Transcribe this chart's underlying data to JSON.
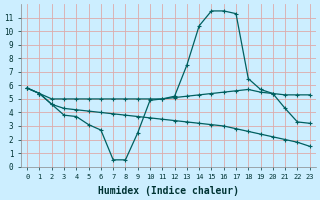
{
  "xlabel": "Humidex (Indice chaleur)",
  "bg_color": "#cceeff",
  "grid_color": "#ddaaaa",
  "line_color": "#006060",
  "xlim": [
    -0.5,
    23.5
  ],
  "ylim": [
    0,
    12
  ],
  "xticks": [
    0,
    1,
    2,
    3,
    4,
    5,
    6,
    7,
    8,
    9,
    10,
    11,
    12,
    13,
    14,
    15,
    16,
    17,
    18,
    19,
    20,
    21,
    22,
    23
  ],
  "yticks": [
    0,
    1,
    2,
    3,
    4,
    5,
    6,
    7,
    8,
    9,
    10,
    11
  ],
  "line_peak_x": [
    0,
    1,
    2,
    3,
    4,
    5,
    6,
    7,
    8,
    9,
    10,
    11,
    12,
    13,
    14,
    15,
    16,
    17,
    18,
    19,
    20,
    21,
    22,
    23
  ],
  "line_peak_y": [
    5.8,
    5.4,
    4.6,
    3.8,
    3.7,
    3.1,
    2.7,
    0.5,
    0.5,
    2.5,
    4.9,
    5.0,
    5.2,
    7.5,
    10.4,
    11.5,
    11.5,
    11.3,
    6.5,
    5.7,
    5.4,
    4.3,
    3.3,
    3.2
  ],
  "line_flat_x": [
    0,
    1,
    2,
    3,
    4,
    5,
    6,
    7,
    8,
    9,
    10,
    11,
    12,
    13,
    14,
    15,
    16,
    17,
    18,
    19,
    20,
    21,
    22,
    23
  ],
  "line_flat_y": [
    5.8,
    5.4,
    5.0,
    5.0,
    5.0,
    5.0,
    5.0,
    5.0,
    5.0,
    5.0,
    5.0,
    5.0,
    5.1,
    5.2,
    5.3,
    5.4,
    5.5,
    5.6,
    5.7,
    5.5,
    5.4,
    5.3,
    5.3,
    5.3
  ],
  "line_down_x": [
    0,
    1,
    2,
    3,
    4,
    5,
    6,
    7,
    8,
    9,
    10,
    11,
    12,
    13,
    14,
    15,
    16,
    17,
    18,
    19,
    20,
    21,
    22,
    23
  ],
  "line_down_y": [
    5.8,
    5.4,
    4.6,
    4.3,
    4.2,
    4.1,
    4.0,
    3.9,
    3.8,
    3.7,
    3.6,
    3.5,
    3.4,
    3.3,
    3.2,
    3.1,
    3.0,
    2.8,
    2.6,
    2.4,
    2.2,
    2.0,
    1.8,
    1.5
  ],
  "xlabel_fontsize": 7,
  "tick_fontsize": 5.5
}
